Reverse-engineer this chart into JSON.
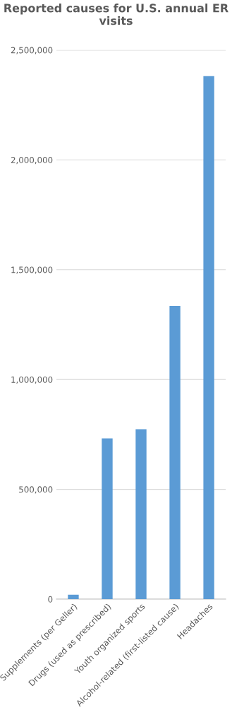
{
  "chart_data": {
    "type": "bar",
    "title": "Reported causes for U.S. annual ER visits",
    "categories": [
      "Supplements (per Geller)",
      "Drugs (used as prescribed)",
      "Youth organized sports",
      "Alcohol-related (first-listed cause)",
      "Headaches"
    ],
    "values": [
      20000,
      732000,
      774000,
      1335000,
      2381000
    ],
    "color": "#5b9bd5",
    "ylim": [
      0,
      2500000
    ],
    "yticks": [
      {
        "value": 0,
        "label": "0"
      },
      {
        "value": 500000,
        "label": "500,000"
      },
      {
        "value": 1000000,
        "label": "1,000,000"
      },
      {
        "value": 1500000,
        "label": "1,500,000"
      },
      {
        "value": 2000000,
        "label": "2,000,000"
      },
      {
        "value": 2500000,
        "label": "2,500,000"
      }
    ],
    "grid": "y",
    "legend": false
  }
}
